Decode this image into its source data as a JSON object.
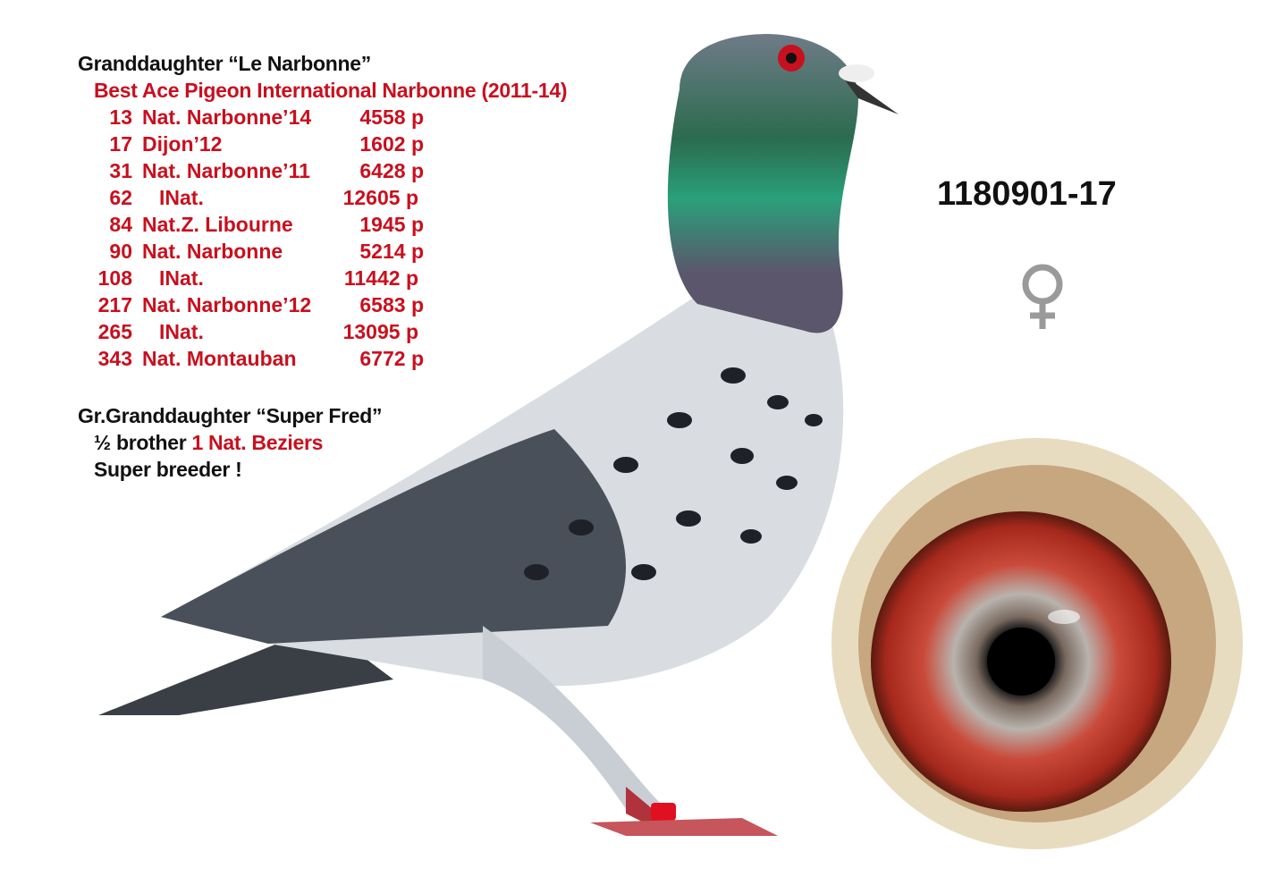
{
  "pedigree": {
    "title": "Granddaughter “Le Narbonne”",
    "subtitle": "Best Ace Pigeon International Narbonne (2011-14)",
    "results": [
      {
        "place": "13",
        "event": "Nat. Narbonne’14",
        "count": "4558 p"
      },
      {
        "place": "17",
        "event": "Dijon’12",
        "count": "1602 p"
      },
      {
        "place": "31",
        "event": "Nat. Narbonne’11",
        "count": "6428 p"
      },
      {
        "place": "62",
        "event": "INat.",
        "count": "12605 p"
      },
      {
        "place": "84",
        "event": "Nat.Z. Libourne",
        "count": "1945 p"
      },
      {
        "place": "90",
        "event": "Nat. Narbonne",
        "count": "5214 p"
      },
      {
        "place": "108",
        "event": "INat.",
        "count": "11442 p"
      },
      {
        "place": "217",
        "event": "Nat. Narbonne’12",
        "count": "6583 p"
      },
      {
        "place": "265",
        "event": "INat.",
        "count": "13095 p"
      },
      {
        "place": "343",
        "event": "Nat. Montauban",
        "count": "6772 p"
      }
    ],
    "title2": "Gr.Granddaughter “Super Fred”",
    "brother_prefix": "½ brother ",
    "brother_result": "1 Nat. Beziers",
    "note": "Super breeder !"
  },
  "ring_number": "1180901-17",
  "sex_symbol": "♀",
  "colors": {
    "red": "#c8101e",
    "text": "#111111",
    "symbol": "#9a9a9a"
  },
  "images": {
    "bird": "pigeon-photo",
    "eye": "eye-closeup"
  }
}
